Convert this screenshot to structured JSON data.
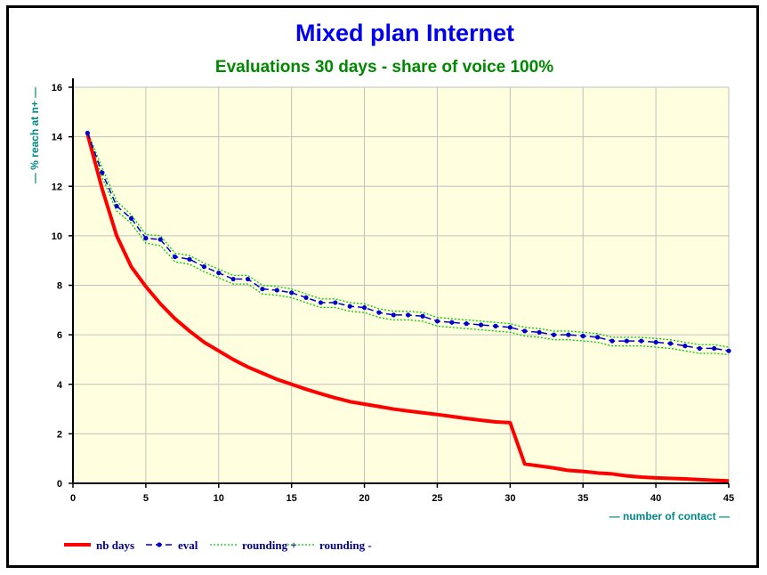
{
  "chart_data": {
    "type": "line",
    "title": "Mixed plan Internet",
    "subtitle": "Evaluations 30 days - share of voice 100%",
    "xlabel": "— number of contact —",
    "ylabel": "— % reach at n+ —",
    "xlim": [
      0,
      45
    ],
    "ylim": [
      0,
      16
    ],
    "x_ticks": [
      "0",
      "5",
      "10",
      "15",
      "20",
      "25",
      "30",
      "35",
      "40",
      "45"
    ],
    "y_ticks": [
      "0",
      "2",
      "4",
      "6",
      "8",
      "10",
      "12",
      "14",
      "16"
    ],
    "grid": true,
    "legend_position": "bottom-left",
    "plot_background": "#ffffe0",
    "x": [
      1,
      2,
      3,
      4,
      5,
      6,
      7,
      8,
      9,
      10,
      11,
      12,
      13,
      14,
      15,
      16,
      17,
      18,
      19,
      20,
      21,
      22,
      23,
      24,
      25,
      26,
      27,
      28,
      29,
      30,
      31,
      32,
      33,
      34,
      35,
      36,
      37,
      38,
      39,
      40,
      41,
      42,
      43,
      44,
      45
    ],
    "series": [
      {
        "name": "nb days",
        "color": "#ff0000",
        "style": "solid-thick",
        "values": [
          14.1,
          11.9,
          10.0,
          8.75,
          7.95,
          7.25,
          6.65,
          6.15,
          5.7,
          5.35,
          5.0,
          4.7,
          4.45,
          4.2,
          4.0,
          3.8,
          3.62,
          3.45,
          3.3,
          3.2,
          3.1,
          3.0,
          2.92,
          2.85,
          2.78,
          2.7,
          2.62,
          2.55,
          2.48,
          2.45,
          0.78,
          0.7,
          0.62,
          0.52,
          0.48,
          0.42,
          0.38,
          0.3,
          0.25,
          0.22,
          0.2,
          0.18,
          0.15,
          0.12,
          0.1
        ]
      },
      {
        "name": "eval",
        "color": "#0000cc",
        "style": "dashed-dots",
        "values": [
          14.15,
          12.55,
          11.2,
          10.7,
          9.9,
          9.85,
          9.15,
          9.05,
          8.75,
          8.5,
          8.25,
          8.25,
          7.85,
          7.8,
          7.7,
          7.5,
          7.3,
          7.3,
          7.15,
          7.1,
          6.9,
          6.8,
          6.8,
          6.75,
          6.55,
          6.5,
          6.45,
          6.4,
          6.35,
          6.3,
          6.15,
          6.1,
          6.0,
          6.0,
          5.95,
          5.9,
          5.75,
          5.75,
          5.75,
          5.7,
          5.65,
          5.55,
          5.45,
          5.45,
          5.35
        ]
      },
      {
        "name": "rounding +",
        "color": "#00cc00",
        "style": "dotted",
        "values": [
          14.2,
          12.75,
          11.4,
          10.85,
          10.05,
          10.0,
          9.3,
          9.2,
          8.9,
          8.65,
          8.4,
          8.4,
          8.0,
          7.95,
          7.85,
          7.65,
          7.45,
          7.45,
          7.3,
          7.25,
          7.05,
          6.95,
          6.95,
          6.9,
          6.7,
          6.65,
          6.6,
          6.55,
          6.5,
          6.45,
          6.3,
          6.25,
          6.15,
          6.15,
          6.1,
          6.05,
          5.9,
          5.9,
          5.9,
          5.85,
          5.8,
          5.7,
          5.6,
          5.6,
          5.5
        ]
      },
      {
        "name": "rounding -",
        "color": "#00cc00",
        "style": "dotted",
        "values": [
          14.1,
          12.35,
          11.0,
          10.5,
          9.7,
          9.6,
          8.95,
          8.85,
          8.55,
          8.3,
          8.05,
          8.05,
          7.65,
          7.6,
          7.5,
          7.3,
          7.1,
          7.1,
          6.95,
          6.9,
          6.7,
          6.6,
          6.6,
          6.55,
          6.35,
          6.3,
          6.25,
          6.2,
          6.15,
          6.1,
          5.95,
          5.9,
          5.8,
          5.8,
          5.75,
          5.7,
          5.55,
          5.55,
          5.55,
          5.5,
          5.45,
          5.35,
          5.25,
          5.25,
          5.2
        ]
      }
    ]
  }
}
